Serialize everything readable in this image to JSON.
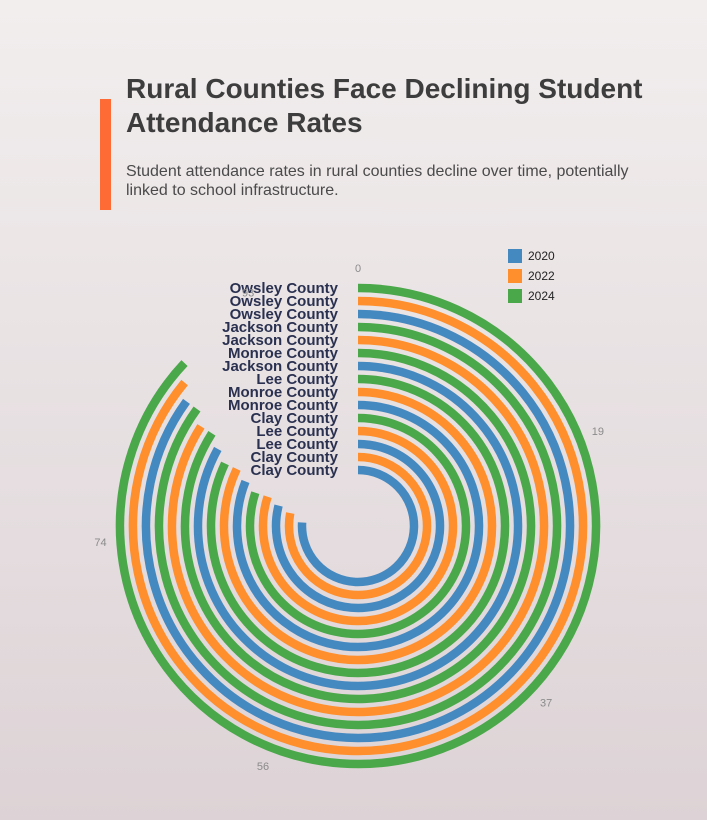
{
  "header": {
    "title": "Rural Counties Face Declining Student Attendance Rates",
    "subtitle": "Student attendance rates in rural counties decline over time, potentially linked to school infrastructure."
  },
  "colors": {
    "accent": "#ff6b35",
    "series_2020": "#4589c1",
    "series_2022": "#fe8f2c",
    "series_2024": "#4aa84a"
  },
  "chart_data": {
    "type": "radial-bar",
    "angular_axis": {
      "range": [
        0,
        100
      ],
      "direction": "clockwise",
      "start": "top",
      "tick_labels": [
        "0",
        "19",
        "37",
        "56",
        "74",
        "93"
      ]
    },
    "legend": {
      "placement": "top-right",
      "entries": [
        "2020",
        "2022",
        "2024"
      ]
    },
    "bars": [
      {
        "county": "Owsley County",
        "year": "2024",
        "value": 87
      },
      {
        "county": "Owsley County",
        "year": "2022",
        "value": 86
      },
      {
        "county": "Owsley County",
        "year": "2020",
        "value": 85
      },
      {
        "county": "Jackson County",
        "year": "2024",
        "value": 85
      },
      {
        "county": "Jackson County",
        "year": "2022",
        "value": 84
      },
      {
        "county": "Monroe County",
        "year": "2024",
        "value": 84
      },
      {
        "county": "Jackson County",
        "year": "2020",
        "value": 83
      },
      {
        "county": "Lee County",
        "year": "2024",
        "value": 82
      },
      {
        "county": "Monroe County",
        "year": "2022",
        "value": 82
      },
      {
        "county": "Monroe County",
        "year": "2020",
        "value": 81
      },
      {
        "county": "Clay County",
        "year": "2024",
        "value": 80
      },
      {
        "county": "Lee County",
        "year": "2022",
        "value": 80
      },
      {
        "county": "Lee County",
        "year": "2020",
        "value": 79
      },
      {
        "county": "Clay County",
        "year": "2022",
        "value": 78
      },
      {
        "county": "Clay County",
        "year": "2020",
        "value": 76
      }
    ]
  }
}
